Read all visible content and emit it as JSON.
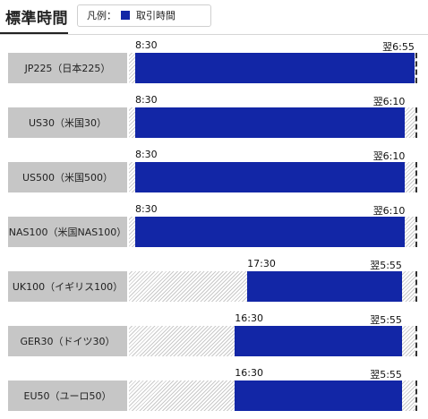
{
  "header": {
    "title": "標準時間",
    "legend_label": "凡例：",
    "legend_item": "取引時間"
  },
  "colors": {
    "trading": "#1226a6",
    "name_box": "#c6c6c6"
  },
  "chart_data": {
    "type": "bar",
    "axis_start": "8:00",
    "axis_end": "翌7:00",
    "rows": [
      {
        "name": "JP225（日本225）",
        "start": "8:30",
        "end": "翌6:55"
      },
      {
        "name": "US30（米国30）",
        "start": "8:30",
        "end": "翌6:10"
      },
      {
        "name": "US500（米国500）",
        "start": "8:30",
        "end": "翌6:10"
      },
      {
        "name": "NAS100（米国NAS100）",
        "start": "8:30",
        "end": "翌6:10"
      },
      {
        "name": "UK100（イギリス100）",
        "start": "17:30",
        "end": "翌5:55"
      },
      {
        "name": "GER30（ドイツ30）",
        "start": "16:30",
        "end": "翌5:55"
      },
      {
        "name": "EU50（ユーロ50）",
        "start": "16:30",
        "end": "翌5:55"
      }
    ]
  }
}
